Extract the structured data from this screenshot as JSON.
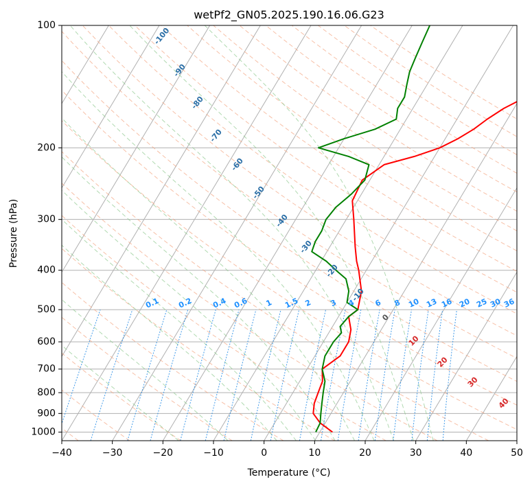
{
  "chart_data": {
    "type": "line",
    "title": "wetPf2_GN05.2025.190.16.06.G23",
    "xlabel": "Temperature (°C)",
    "ylabel": "Pressure (hPa)",
    "xlim": [
      -40,
      50
    ],
    "ylim": [
      1050,
      100
    ],
    "y_scale": "log",
    "x_ticks": [
      "−40",
      "−30",
      "−20",
      "−10",
      "0",
      "10",
      "20",
      "30",
      "40",
      "50"
    ],
    "x_tick_values": [
      -40,
      -30,
      -20,
      -10,
      0,
      10,
      20,
      30,
      40,
      50
    ],
    "y_ticks": [
      "100",
      "200",
      "300",
      "400",
      "500",
      "600",
      "700",
      "800",
      "900",
      "1000"
    ],
    "y_tick_values": [
      100,
      200,
      300,
      400,
      500,
      600,
      700,
      800,
      900,
      1000
    ],
    "grid": true,
    "series": [
      {
        "color": "#ff0000",
        "points": [
          [
            1000,
            12.5
          ],
          [
            950,
            9.0
          ],
          [
            900,
            6.5
          ],
          [
            850,
            5.5
          ],
          [
            800,
            5.0
          ],
          [
            750,
            4.5
          ],
          [
            700,
            3.0
          ],
          [
            650,
            5.0
          ],
          [
            600,
            5.0
          ],
          [
            560,
            4.0
          ],
          [
            520,
            2.0
          ],
          [
            500,
            3.0
          ],
          [
            450,
            1.5
          ],
          [
            400,
            -1.5
          ],
          [
            380,
            -3.0
          ],
          [
            350,
            -5.0
          ],
          [
            300,
            -8.5
          ],
          [
            270,
            -11.0
          ],
          [
            240,
            -11.5
          ],
          [
            220,
            -9.0
          ],
          [
            210,
            -4.0
          ],
          [
            200,
            0.0
          ],
          [
            190,
            2.5
          ],
          [
            180,
            4.5
          ],
          [
            170,
            6.0
          ],
          [
            160,
            8.0
          ],
          [
            150,
            11.0
          ],
          [
            140,
            14.0
          ],
          [
            130,
            16.5
          ],
          [
            120,
            18.5
          ],
          [
            110,
            21.0
          ],
          [
            100,
            23.0
          ]
        ]
      },
      {
        "color": "#008000",
        "points": [
          [
            1000,
            9.2
          ],
          [
            950,
            9.0
          ],
          [
            900,
            8.0
          ],
          [
            850,
            7.0
          ],
          [
            800,
            6.0
          ],
          [
            750,
            5.0
          ],
          [
            700,
            3.0
          ],
          [
            650,
            2.0
          ],
          [
            600,
            2.0
          ],
          [
            570,
            2.5
          ],
          [
            550,
            1.5
          ],
          [
            520,
            2.0
          ],
          [
            500,
            3.0
          ],
          [
            480,
            0.0
          ],
          [
            450,
            -1.0
          ],
          [
            420,
            -3.0
          ],
          [
            400,
            -6.0
          ],
          [
            380,
            -9.0
          ],
          [
            360,
            -13.0
          ],
          [
            340,
            -13.5
          ],
          [
            320,
            -13.5
          ],
          [
            300,
            -14.0
          ],
          [
            280,
            -13.5
          ],
          [
            260,
            -12.0
          ],
          [
            240,
            -11.0
          ],
          [
            220,
            -12.0
          ],
          [
            210,
            -17.0
          ],
          [
            200,
            -24.0
          ],
          [
            190,
            -20.0
          ],
          [
            180,
            -15.0
          ],
          [
            170,
            -12.0
          ],
          [
            160,
            -13.0
          ],
          [
            150,
            -13.0
          ],
          [
            140,
            -14.0
          ],
          [
            130,
            -15.0
          ],
          [
            120,
            -15.5
          ],
          [
            110,
            -16.0
          ],
          [
            100,
            -16.5
          ]
        ]
      }
    ],
    "dry_adiabat_labels": [
      "-100",
      "-90",
      "-80",
      "-70",
      "-60",
      "-50",
      "-40",
      "-30",
      "-20",
      "-10"
    ],
    "mixing_ratio_labels": [
      "0.1",
      "0.2",
      "0.4",
      "0.6",
      "1",
      "1.5",
      "2",
      "3",
      "4",
      "6",
      "8",
      "10",
      "13",
      "16",
      "20",
      "25",
      "30",
      "36"
    ],
    "moist_adiabat_labels": [
      "0",
      "10",
      "20",
      "30",
      "40"
    ]
  }
}
